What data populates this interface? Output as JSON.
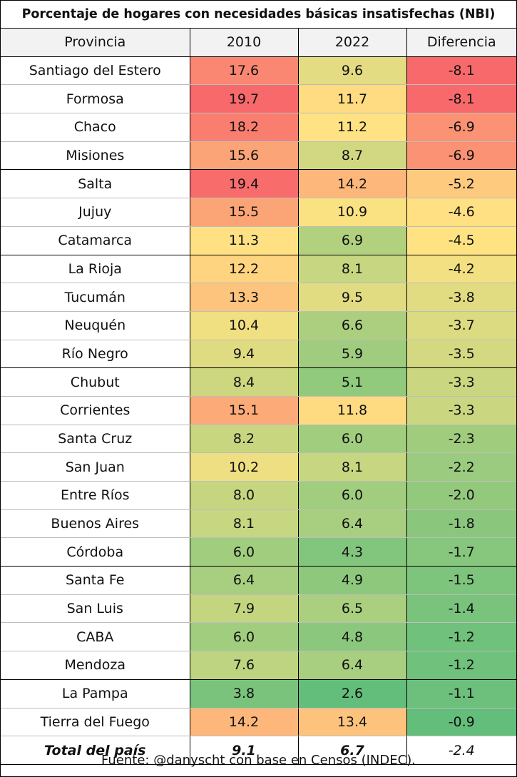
{
  "chart_data": {
    "type": "table",
    "title": "Porcentaje de hogares con necesidades básicas insatisfechas (NBI)",
    "columns": [
      "Provincia",
      "2010",
      "2022",
      "Diferencia"
    ],
    "rows": [
      [
        "Santiago del Estero",
        "17.6",
        "9.6",
        "-8.1"
      ],
      [
        "Formosa",
        "19.7",
        "11.7",
        "-8.1"
      ],
      [
        "Chaco",
        "18.2",
        "11.2",
        "-6.9"
      ],
      [
        "Misiones",
        "15.6",
        "8.7",
        "-6.9"
      ],
      [
        "Salta",
        "19.4",
        "14.2",
        "-5.2"
      ],
      [
        "Jujuy",
        "15.5",
        "10.9",
        "-4.6"
      ],
      [
        "Catamarca",
        "11.3",
        "6.9",
        "-4.5"
      ],
      [
        "La Rioja",
        "12.2",
        "8.1",
        "-4.2"
      ],
      [
        "Tucumán",
        "13.3",
        "9.5",
        "-3.8"
      ],
      [
        "Neuquén",
        "10.4",
        "6.6",
        "-3.7"
      ],
      [
        "Río Negro",
        "9.4",
        "5.9",
        "-3.5"
      ],
      [
        "Chubut",
        "8.4",
        "5.1",
        "-3.3"
      ],
      [
        "Corrientes",
        "15.1",
        "11.8",
        "-3.3"
      ],
      [
        "Santa Cruz",
        "8.2",
        "6.0",
        "-2.3"
      ],
      [
        "San Juan",
        "10.2",
        "8.1",
        "-2.2"
      ],
      [
        "Entre Ríos",
        "8.0",
        "6.0",
        "-2.0"
      ],
      [
        "Buenos Aires",
        "8.1",
        "6.4",
        "-1.8"
      ],
      [
        "Córdoba",
        "6.0",
        "4.3",
        "-1.7"
      ],
      [
        "Santa Fe",
        "6.4",
        "4.9",
        "-1.5"
      ],
      [
        "San Luis",
        "7.9",
        "6.5",
        "-1.4"
      ],
      [
        "CABA",
        "6.0",
        "4.8",
        "-1.2"
      ],
      [
        "Mendoza",
        "7.6",
        "6.4",
        "-1.2"
      ],
      [
        "La Pampa",
        "3.8",
        "2.6",
        "-1.1"
      ],
      [
        "Tierra del Fuego",
        "14.2",
        "13.4",
        "-0.9"
      ]
    ],
    "total": [
      "Total del país",
      "9.1",
      "6.7",
      "-2.4"
    ],
    "color_scale": {
      "low": "#63be7b",
      "mid": "#ffe383",
      "high": "#f8696b"
    }
  },
  "source": "Fuente: @danyscht con base en Censos (INDEC)."
}
